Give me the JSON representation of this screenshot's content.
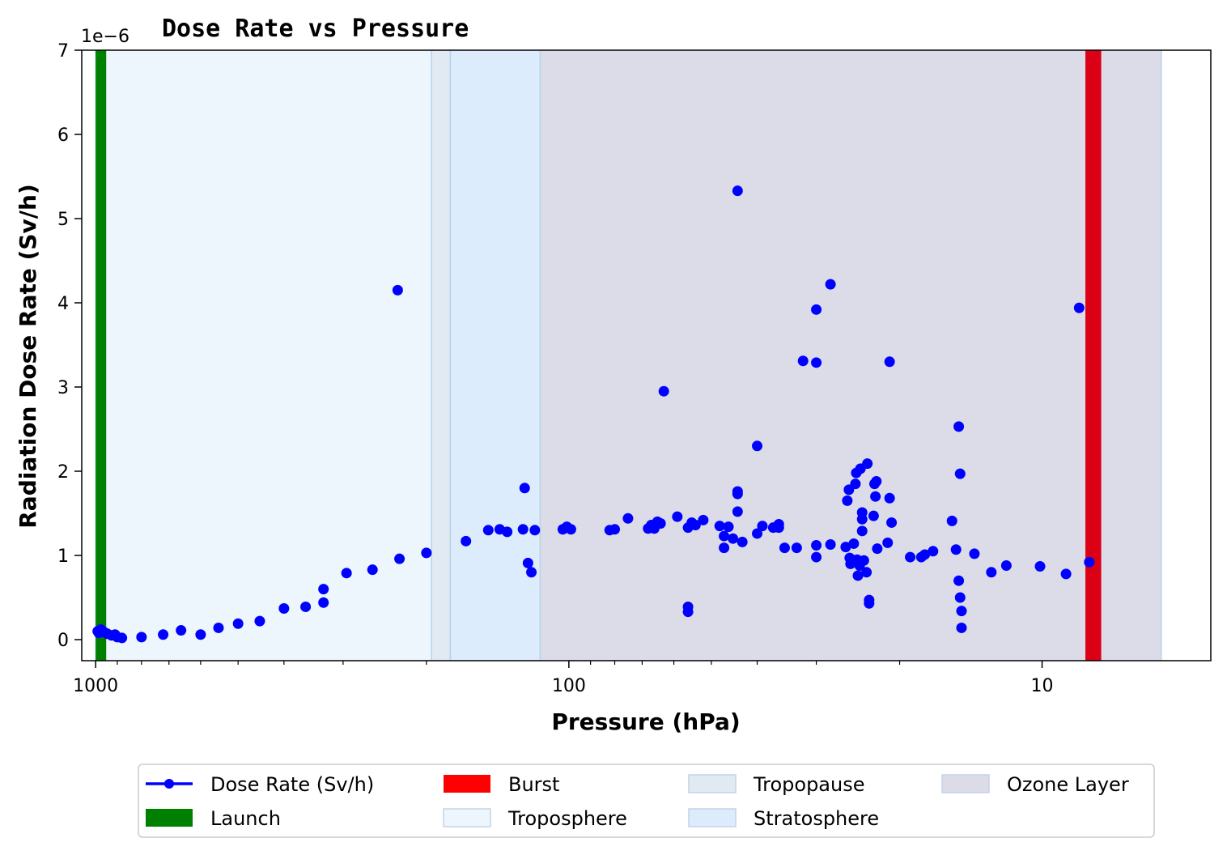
{
  "chart_data": {
    "type": "scatter",
    "title": "Dose Rate vs Pressure",
    "xlabel": "Pressure (hPa)",
    "ylabel": "Radiation Dose Rate (Sv/h)",
    "y_offset_label": "1e−6",
    "x_scale": "log",
    "x_inverted": true,
    "xlim": [
      1070,
      4.4
    ],
    "ylim": [
      -0.25,
      7
    ],
    "x_ticks": [
      {
        "value": 1000,
        "label": "1000"
      },
      {
        "value": 100,
        "label": "100"
      },
      {
        "value": 10,
        "label": "10"
      }
    ],
    "y_ticks": [
      {
        "value": 0,
        "label": "0"
      },
      {
        "value": 1,
        "label": "1"
      },
      {
        "value": 2,
        "label": "2"
      },
      {
        "value": 3,
        "label": "3"
      },
      {
        "value": 4,
        "label": "4"
      },
      {
        "value": 5,
        "label": "5"
      },
      {
        "value": 6,
        "label": "6"
      },
      {
        "value": 7,
        "label": "7"
      }
    ],
    "grid": false,
    "legend_position": "bottom-center, below plot",
    "regions": [
      {
        "name": "Troposphere",
        "from": 1000,
        "to": 195,
        "color": "#edf6fc"
      },
      {
        "name": "Tropopause",
        "from": 195,
        "to": 178,
        "color": "#e1eaf2"
      },
      {
        "name": "Stratosphere",
        "from": 178,
        "to": 115,
        "color": "#dcecfc"
      },
      {
        "name": "Ozone Layer",
        "from": 115,
        "to": 5.6,
        "color": "#dcdce8"
      }
    ],
    "markers": [
      {
        "name": "Launch",
        "from": 1000,
        "to": 950,
        "color": "#008000"
      },
      {
        "name": "Burst",
        "from": 8.1,
        "to": 7.5,
        "color": "#db0016"
      }
    ],
    "series": [
      {
        "name": "Dose Rate (Sv/h)",
        "color": "#0000ff",
        "points": [
          [
            990,
            0.1
          ],
          [
            985,
            0.08
          ],
          [
            975,
            0.12
          ],
          [
            960,
            0.09
          ],
          [
            945,
            0.07
          ],
          [
            925,
            0.05
          ],
          [
            910,
            0.06
          ],
          [
            900,
            0.03
          ],
          [
            880,
            0.02
          ],
          [
            800,
            0.03
          ],
          [
            720,
            0.06
          ],
          [
            660,
            0.11
          ],
          [
            600,
            0.06
          ],
          [
            550,
            0.14
          ],
          [
            500,
            0.19
          ],
          [
            450,
            0.22
          ],
          [
            400,
            0.37
          ],
          [
            360,
            0.39
          ],
          [
            330,
            0.44
          ],
          [
            330,
            0.6
          ],
          [
            295,
            0.79
          ],
          [
            260,
            0.83
          ],
          [
            230,
            4.15
          ],
          [
            228,
            0.96
          ],
          [
            200,
            1.03
          ],
          [
            165,
            1.17
          ],
          [
            148,
            1.3
          ],
          [
            140,
            1.31
          ],
          [
            135,
            1.28
          ],
          [
            125,
            1.31
          ],
          [
            124,
            1.8
          ],
          [
            122,
            0.91
          ],
          [
            120,
            0.8
          ],
          [
            118,
            1.3
          ],
          [
            103,
            1.31
          ],
          [
            101,
            1.34
          ],
          [
            99,
            1.31
          ],
          [
            82,
            1.3
          ],
          [
            80,
            1.31
          ],
          [
            75,
            1.44
          ],
          [
            68,
            1.32
          ],
          [
            67,
            1.36
          ],
          [
            66,
            1.32
          ],
          [
            65,
            1.4
          ],
          [
            64,
            1.38
          ],
          [
            63,
            2.95
          ],
          [
            59,
            1.46
          ],
          [
            56,
            1.33
          ],
          [
            56,
            0.39
          ],
          [
            56,
            0.33
          ],
          [
            55,
            1.39
          ],
          [
            54,
            1.36
          ],
          [
            52,
            1.42
          ],
          [
            48,
            1.35
          ],
          [
            47,
            1.23
          ],
          [
            47,
            1.09
          ],
          [
            46,
            1.34
          ],
          [
            45,
            1.2
          ],
          [
            44,
            5.33
          ],
          [
            44,
            1.76
          ],
          [
            44,
            1.73
          ],
          [
            44,
            1.52
          ],
          [
            43,
            1.16
          ],
          [
            40,
            2.3
          ],
          [
            40,
            1.26
          ],
          [
            39,
            1.35
          ],
          [
            37,
            1.33
          ],
          [
            36,
            1.37
          ],
          [
            36,
            1.33
          ],
          [
            35,
            1.09
          ],
          [
            33,
            1.09
          ],
          [
            32,
            3.31
          ],
          [
            30,
            3.92
          ],
          [
            30,
            3.29
          ],
          [
            30,
            1.12
          ],
          [
            30,
            0.98
          ],
          [
            28,
            4.22
          ],
          [
            28,
            1.13
          ],
          [
            26,
            1.1
          ],
          [
            25.8,
            1.65
          ],
          [
            25.6,
            1.78
          ],
          [
            25.5,
            0.97
          ],
          [
            25.4,
            0.9
          ],
          [
            25,
            1.14
          ],
          [
            24.8,
            1.85
          ],
          [
            24.7,
            1.98
          ],
          [
            24.6,
            0.95
          ],
          [
            24.5,
            0.76
          ],
          [
            24.3,
            0.88
          ],
          [
            24.2,
            2.03
          ],
          [
            24,
            1.51
          ],
          [
            24,
            1.43
          ],
          [
            24,
            1.29
          ],
          [
            23.8,
            0.94
          ],
          [
            23.5,
            0.8
          ],
          [
            23.4,
            2.09
          ],
          [
            23.2,
            0.43
          ],
          [
            23.2,
            0.47
          ],
          [
            22.7,
            1.47
          ],
          [
            22.6,
            1.85
          ],
          [
            22.5,
            1.7
          ],
          [
            22.4,
            1.88
          ],
          [
            22.3,
            1.08
          ],
          [
            21.2,
            1.15
          ],
          [
            21,
            3.3
          ],
          [
            21,
            1.68
          ],
          [
            20.8,
            1.39
          ],
          [
            19,
            0.98
          ],
          [
            18,
            0.98
          ],
          [
            17.7,
            1.01
          ],
          [
            17,
            1.05
          ],
          [
            15.5,
            1.41
          ],
          [
            15.2,
            1.07
          ],
          [
            15,
            0.7
          ],
          [
            15,
            2.53
          ],
          [
            14.9,
            1.97
          ],
          [
            14.9,
            0.5
          ],
          [
            14.8,
            0.34
          ],
          [
            14.8,
            0.14
          ],
          [
            13.9,
            1.02
          ],
          [
            12.8,
            0.8
          ],
          [
            11.9,
            0.88
          ],
          [
            10.1,
            0.87
          ],
          [
            8.9,
            0.78
          ],
          [
            8.35,
            3.94
          ],
          [
            7.95,
            0.92
          ]
        ]
      }
    ],
    "legend": [
      {
        "label": "Dose Rate (Sv/h)",
        "kind": "line-marker",
        "color": "#0000ff"
      },
      {
        "label": "Launch",
        "kind": "patch",
        "color": "#008000"
      },
      {
        "label": "Burst",
        "kind": "patch",
        "color": "#ff0000"
      },
      {
        "label": "Troposphere",
        "kind": "patch",
        "color": "#edf6fc"
      },
      {
        "label": "Tropopause",
        "kind": "patch",
        "color": "#e1eaf2"
      },
      {
        "label": "Stratosphere",
        "kind": "patch",
        "color": "#dcecfc"
      },
      {
        "label": "Ozone Layer",
        "kind": "patch",
        "color": "#dcdce8"
      }
    ]
  }
}
